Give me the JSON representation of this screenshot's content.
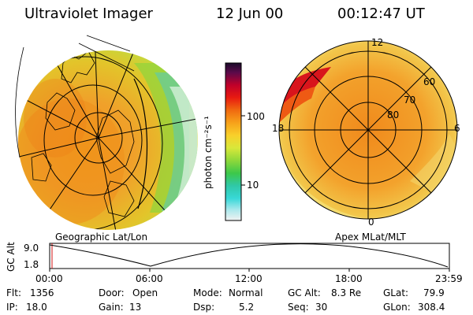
{
  "header": {
    "title": "Ultraviolet Imager",
    "date": "12 Jun 00",
    "time": "00:12:47 UT"
  },
  "colorbar": {
    "unit_label": "photon cm⁻²s⁻¹",
    "ticks": [
      "100",
      "10"
    ],
    "scale": "log"
  },
  "left_panel": {
    "caption": "Geographic Lat/Lon"
  },
  "right_panel": {
    "caption": "Apex MLat/MLT",
    "lat_labels": [
      "60",
      "70",
      "80"
    ],
    "mlt_labels": [
      "12",
      "18",
      "6",
      "0"
    ]
  },
  "altitude_plot": {
    "ylabel": "GC Alt",
    "yticks": [
      "9.0",
      "1.8"
    ],
    "xticks": [
      "00:00",
      "06:00",
      "12:00",
      "18:00",
      "23:59"
    ]
  },
  "footer": {
    "flt_label": "Flt:",
    "flt_value": "1356",
    "door_label": "Door:",
    "door_value": "Open",
    "mode_label": "Mode:",
    "mode_value": "Normal",
    "gcalt_label": "GC Alt:",
    "gcalt_value": "8.3 Re",
    "glat_label": "GLat:",
    "glat_value": "79.9",
    "ip_label": "IP:",
    "ip_value": "18.0",
    "gain_label": "Gain:",
    "gain_value": "13",
    "dsp_label": "Dsp:",
    "dsp_value": "5.2",
    "seq_label": "Seq:",
    "seq_value": "30",
    "glon_label": "GLon:",
    "glon_value": "308.4"
  }
}
